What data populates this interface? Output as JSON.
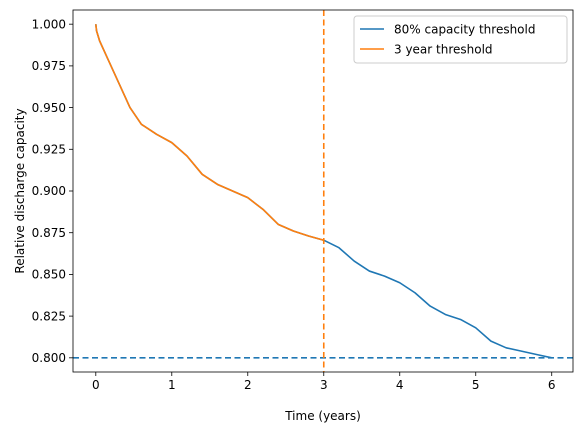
{
  "chart_data": {
    "type": "line",
    "title": "",
    "xlabel": "Time (years)",
    "ylabel": "Relative discharge capacity",
    "xlim": [
      -0.3,
      6.28
    ],
    "ylim": [
      0.7915,
      1.0085
    ],
    "xticks": [
      0,
      1,
      2,
      3,
      4,
      5,
      6
    ],
    "xtick_labels": [
      "0",
      "1",
      "2",
      "3",
      "4",
      "5",
      "6"
    ],
    "yticks": [
      0.8,
      0.825,
      0.85,
      0.875,
      0.9,
      0.925,
      0.95,
      0.975,
      1.0
    ],
    "ytick_labels": [
      "0.800",
      "0.825",
      "0.850",
      "0.875",
      "0.900",
      "0.925",
      "0.950",
      "0.975",
      "1.000"
    ],
    "grid": false,
    "legend_position": "top-right",
    "series": [
      {
        "name": "80% capacity threshold",
        "color": "#1f77b4",
        "x": [
          0,
          0.01,
          0.05,
          0.15,
          0.3,
          0.45,
          0.6,
          0.8,
          1.0,
          1.2,
          1.4,
          1.6,
          1.8,
          2.0,
          2.2,
          2.4,
          2.6,
          2.8,
          3.0,
          3.2,
          3.4,
          3.6,
          3.8,
          4.0,
          4.2,
          4.4,
          4.6,
          4.8,
          5.0,
          5.2,
          5.4,
          5.6,
          5.8,
          6.0
        ],
        "y": [
          1.0,
          0.996,
          0.99,
          0.98,
          0.965,
          0.95,
          0.94,
          0.934,
          0.929,
          0.921,
          0.91,
          0.904,
          0.9,
          0.896,
          0.889,
          0.88,
          0.876,
          0.873,
          0.8705,
          0.866,
          0.858,
          0.852,
          0.849,
          0.845,
          0.839,
          0.831,
          0.826,
          0.823,
          0.818,
          0.81,
          0.806,
          0.804,
          0.802,
          0.8
        ]
      },
      {
        "name": "3 year threshold",
        "color": "#ff7f0e",
        "x": [
          0,
          0.01,
          0.05,
          0.15,
          0.3,
          0.45,
          0.6,
          0.8,
          1.0,
          1.2,
          1.4,
          1.6,
          1.8,
          2.0,
          2.2,
          2.4,
          2.6,
          2.8,
          3.0
        ],
        "y": [
          1.0,
          0.996,
          0.99,
          0.98,
          0.965,
          0.95,
          0.94,
          0.934,
          0.929,
          0.921,
          0.91,
          0.904,
          0.9,
          0.896,
          0.889,
          0.88,
          0.876,
          0.873,
          0.8705
        ]
      }
    ],
    "reference_lines": [
      {
        "orientation": "horizontal",
        "value": 0.8,
        "color": "#1f77b4",
        "style": "dashed"
      },
      {
        "orientation": "vertical",
        "value": 3,
        "color": "#ff7f0e",
        "style": "dashed"
      }
    ]
  }
}
